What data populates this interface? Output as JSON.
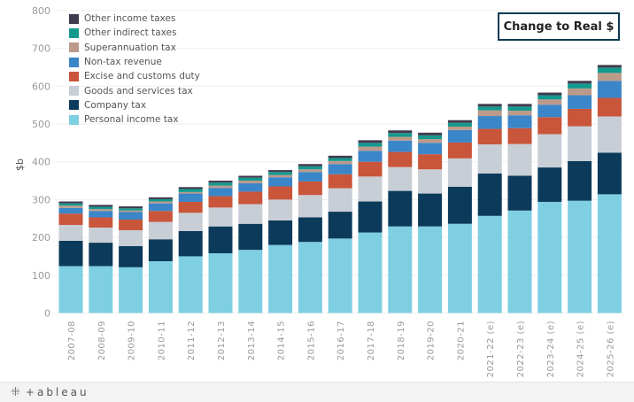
{
  "button": {
    "label": "Change to Real $"
  },
  "footer": {
    "brand": "+ableau"
  },
  "chart_data": {
    "type": "bar",
    "stacked": true,
    "ylabel": "$b",
    "xlabel": "",
    "ylim": [
      0,
      800
    ],
    "yticks": [
      0,
      100,
      200,
      300,
      400,
      500,
      600,
      700,
      800
    ],
    "grid": true,
    "legend_position": "top-left",
    "categories": [
      "2007-08",
      "2008-09",
      "2009-10",
      "2010-11",
      "2011-12",
      "2012-13",
      "2013-14",
      "2014-15",
      "2015-16",
      "2016-17",
      "2017-18",
      "2018-19",
      "2019-20",
      "2020-21",
      "2021-22 (e)",
      "2022-23 (e)",
      "2023-24 (e)",
      "2024-25 (e)",
      "2025-26 (e)"
    ],
    "series": [
      {
        "name": "Personal income tax",
        "color": "#7ecfe1",
        "values": [
          124,
          124,
          121,
          137,
          150,
          158,
          167,
          180,
          188,
          197,
          213,
          229,
          229,
          236,
          257,
          271,
          294,
          297,
          314
        ]
      },
      {
        "name": "Company tax",
        "color": "#0c3a5a",
        "values": [
          67,
          62,
          56,
          58,
          67,
          71,
          69,
          65,
          65,
          71,
          82,
          94,
          87,
          98,
          112,
          92,
          91,
          105,
          110
        ]
      },
      {
        "name": "Goods and services tax",
        "color": "#c8ced6",
        "values": [
          42,
          40,
          42,
          46,
          48,
          50,
          52,
          55,
          59,
          62,
          66,
          63,
          64,
          75,
          77,
          84,
          88,
          92,
          96
        ]
      },
      {
        "name": "Excise and customs duty",
        "color": "#c9553a",
        "values": [
          30,
          27,
          28,
          29,
          29,
          30,
          33,
          35,
          36,
          37,
          39,
          40,
          40,
          42,
          41,
          42,
          45,
          46,
          49
        ]
      },
      {
        "name": "Non-tax revenue",
        "color": "#3b86c8",
        "values": [
          15,
          17,
          20,
          20,
          22,
          22,
          22,
          24,
          25,
          27,
          29,
          30,
          30,
          33,
          34,
          34,
          33,
          36,
          45
        ]
      },
      {
        "name": "Superannuation tax",
        "color": "#bc9a8a",
        "values": [
          6,
          5,
          4,
          5,
          4,
          6,
          7,
          6,
          7,
          8,
          11,
          10,
          10,
          9,
          15,
          12,
          14,
          18,
          21
        ]
      },
      {
        "name": "Other indirect taxes",
        "color": "#14998e",
        "values": [
          6,
          6,
          6,
          6,
          8,
          8,
          8,
          8,
          8,
          8,
          10,
          10,
          10,
          10,
          10,
          11,
          11,
          13,
          14
        ]
      },
      {
        "name": "Other income taxes",
        "color": "#3f3a4e",
        "values": [
          5,
          5,
          5,
          5,
          5,
          5,
          5,
          5,
          6,
          6,
          7,
          7,
          7,
          7,
          7,
          7,
          7,
          7,
          7
        ]
      }
    ]
  }
}
